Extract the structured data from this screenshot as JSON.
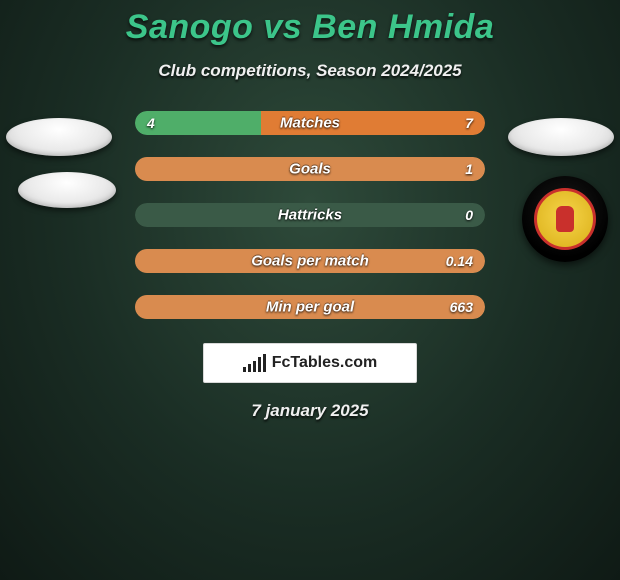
{
  "title": "Sanogo vs Ben Hmida",
  "subtitle": "Club competitions, Season 2024/2025",
  "date": "7 january 2025",
  "footer_brand": "FcTables.com",
  "colors": {
    "accent_title": "#3cc58a",
    "bar_green": "#4fae69",
    "bar_orange": "#e07c34",
    "bar_orange_soft": "#d98b4f",
    "bar_track": "#3a5a47",
    "text": "#ffffff"
  },
  "rows": [
    {
      "label": "Matches",
      "left": "4",
      "right": "7",
      "left_pct": 36,
      "right_pct": 64,
      "left_color": "#4fae69",
      "right_color": "#e07c34"
    },
    {
      "label": "Goals",
      "left": "",
      "right": "1",
      "left_pct": 0,
      "right_pct": 100,
      "left_color": "#4fae69",
      "right_color": "#d98b4f"
    },
    {
      "label": "Hattricks",
      "left": "",
      "right": "0",
      "left_pct": 0,
      "right_pct": 0,
      "left_color": "#4fae69",
      "right_color": "#e07c34"
    },
    {
      "label": "Goals per match",
      "left": "",
      "right": "0.14",
      "left_pct": 0,
      "right_pct": 100,
      "left_color": "#4fae69",
      "right_color": "#d98b4f"
    },
    {
      "label": "Min per goal",
      "left": "",
      "right": "663",
      "left_pct": 0,
      "right_pct": 100,
      "left_color": "#4fae69",
      "right_color": "#d98b4f"
    }
  ],
  "fc_bar_heights": [
    5,
    8,
    11,
    15,
    18
  ]
}
